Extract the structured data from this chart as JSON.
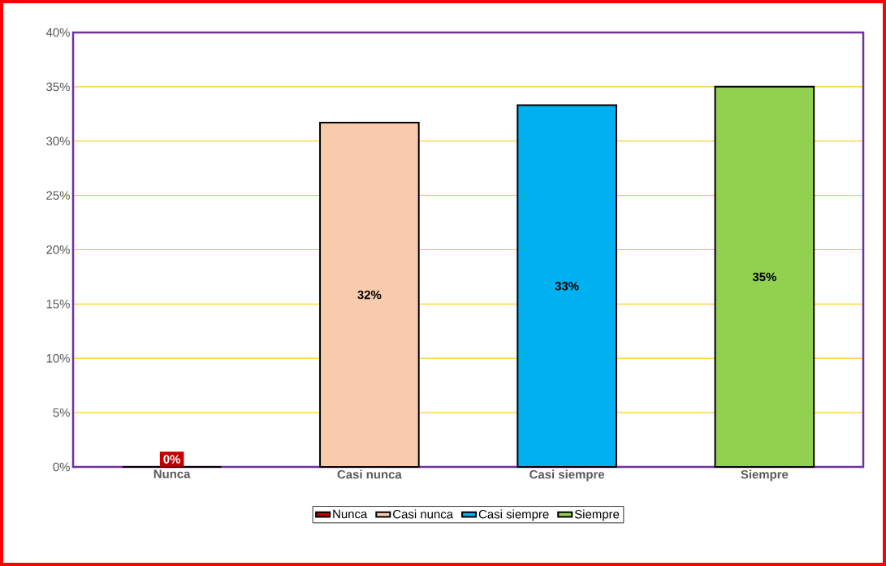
{
  "chart_data": {
    "type": "bar",
    "categories": [
      "Nunca",
      "Casi nunca",
      "Casi siempre",
      "Siempre"
    ],
    "series": [
      {
        "name": "Nunca",
        "color": "#c00000",
        "values": [
          0,
          null,
          null,
          null
        ],
        "value_labels": [
          "0%",
          null,
          null,
          null
        ]
      },
      {
        "name": "Casi nunca",
        "color": "#f8cbad",
        "values": [
          null,
          31.7,
          null,
          null
        ],
        "value_labels": [
          null,
          "32%",
          null,
          null
        ]
      },
      {
        "name": "Casi siempre",
        "color": "#00b0f0",
        "values": [
          null,
          null,
          33.3,
          null
        ],
        "value_labels": [
          null,
          null,
          "33%",
          null
        ]
      },
      {
        "name": "Siempre",
        "color": "#92d050",
        "values": [
          null,
          null,
          null,
          35
        ],
        "value_labels": [
          null,
          null,
          null,
          "35%"
        ]
      }
    ],
    "ylim": [
      0,
      40
    ],
    "yticks": [
      {
        "value": 0,
        "label": "0%"
      },
      {
        "value": 5,
        "label": "5%"
      },
      {
        "value": 10,
        "label": "10%"
      },
      {
        "value": 15,
        "label": "15%"
      },
      {
        "value": 20,
        "label": "20%"
      },
      {
        "value": 25,
        "label": "25%"
      },
      {
        "value": 30,
        "label": "30%"
      },
      {
        "value": 35,
        "label": "35%"
      },
      {
        "value": 40,
        "label": "40%"
      }
    ],
    "grid": "y",
    "legend": "bottom"
  }
}
